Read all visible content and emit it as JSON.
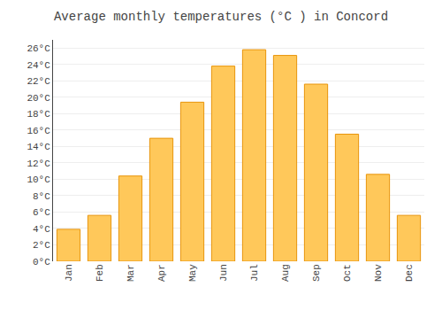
{
  "chart_data": {
    "type": "bar",
    "title": "Average monthly temperatures (°C ) in Concord",
    "categories": [
      "Jan",
      "Feb",
      "Mar",
      "Apr",
      "May",
      "Jun",
      "Jul",
      "Aug",
      "Sep",
      "Oct",
      "Nov",
      "Dec"
    ],
    "values": [
      3.9,
      5.6,
      10.4,
      15.0,
      19.4,
      23.8,
      25.8,
      25.1,
      21.6,
      15.5,
      10.6,
      5.6
    ],
    "color": "#FFC85A",
    "ylim": [
      0,
      27
    ],
    "yticks": [
      {
        "value": 0,
        "label": "0°C"
      },
      {
        "value": 2,
        "label": "2°C"
      },
      {
        "value": 4,
        "label": "4°C"
      },
      {
        "value": 6,
        "label": "6°C"
      },
      {
        "value": 8,
        "label": "8°C"
      },
      {
        "value": 10,
        "label": "10°C"
      },
      {
        "value": 12,
        "label": "12°C"
      },
      {
        "value": 14,
        "label": "14°C"
      },
      {
        "value": 16,
        "label": "16°C"
      },
      {
        "value": 18,
        "label": "18°C"
      },
      {
        "value": 20,
        "label": "20°C"
      },
      {
        "value": 22,
        "label": "22°C"
      },
      {
        "value": 24,
        "label": "24°C"
      },
      {
        "value": 26,
        "label": "26°C"
      }
    ],
    "grid": true
  }
}
